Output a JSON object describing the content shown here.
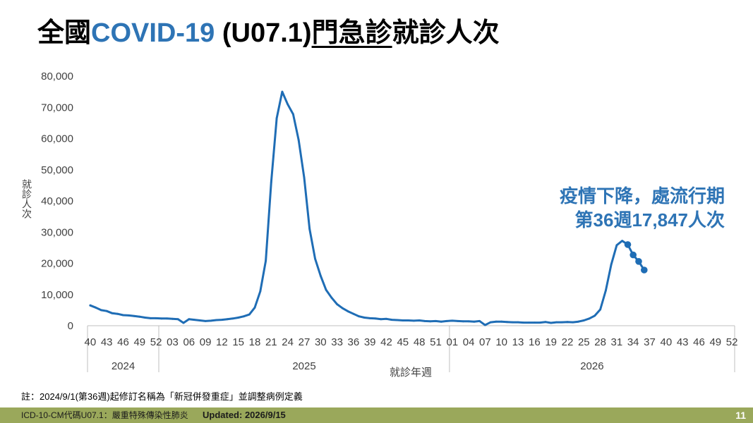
{
  "colors": {
    "accent": "#2e74b5",
    "line": "#1f6db5",
    "footer_bar": "#9aa85b",
    "page_number": "#ffffff"
  },
  "chart_data": {
    "type": "line",
    "title": [
      "全國",
      "COVID-19",
      " (U07.1)",
      "門急診",
      "就診人次"
    ],
    "xlabel": "就診年週",
    "ylabel": "就診人次",
    "ylim": [
      0,
      80000
    ],
    "grid": false,
    "y_ticks": [
      {
        "value": 80000,
        "label": "80,000"
      },
      {
        "value": 70000,
        "label": "70,000"
      },
      {
        "value": 60000,
        "label": "60,000"
      },
      {
        "value": 50000,
        "label": "50,000"
      },
      {
        "value": 40000,
        "label": "40,000"
      },
      {
        "value": 30000,
        "label": "30,000"
      },
      {
        "value": 20000,
        "label": "20,000"
      },
      {
        "value": 10000,
        "label": "10,000"
      },
      {
        "value": 0,
        "label": "0"
      }
    ],
    "x_tick_labels": [
      "40",
      "43",
      "46",
      "49",
      "52",
      "03",
      "06",
      "09",
      "12",
      "15",
      "18",
      "21",
      "24",
      "27",
      "30",
      "33",
      "36",
      "39",
      "42",
      "45",
      "48",
      "51",
      "01",
      "04",
      "07",
      "10",
      "13",
      "16",
      "19",
      "22",
      "25",
      "28",
      "31",
      "34",
      "37",
      "40",
      "43",
      "46",
      "49",
      "52"
    ],
    "years": [
      {
        "label": "2024",
        "week_from": 40,
        "week_to": 52,
        "values": [
          6500,
          5800,
          5000,
          4700,
          4000,
          3800,
          3400,
          3300,
          3100,
          2900,
          2600,
          2400,
          2400
        ]
      },
      {
        "label": "2025",
        "week_from": 1,
        "week_to": 53,
        "values": [
          2300,
          2300,
          2200,
          2100,
          900,
          2100,
          1900,
          1700,
          1500,
          1600,
          1800,
          1900,
          2100,
          2300,
          2600,
          3000,
          3600,
          5800,
          11000,
          20800,
          46000,
          66500,
          75000,
          71000,
          67800,
          59500,
          47500,
          31000,
          21500,
          16000,
          11500,
          9000,
          6900,
          5600,
          4600,
          3800,
          3000,
          2600,
          2400,
          2300,
          2100,
          2200,
          1900,
          1800,
          1700,
          1700,
          1600,
          1700,
          1500,
          1400,
          1500,
          1300,
          1500
        ]
      },
      {
        "label": "2026",
        "week_from": 1,
        "week_to": 52,
        "values": [
          1600,
          1500,
          1400,
          1400,
          1300,
          1500,
          200,
          1100,
          1300,
          1300,
          1200,
          1100,
          1100,
          1000,
          1000,
          1000,
          1000,
          1200,
          900,
          1100,
          1100,
          1200,
          1100,
          1300,
          1700,
          2300,
          3200,
          5200,
          11300,
          19600,
          25800,
          27200,
          26000,
          22700,
          20600,
          17847
        ],
        "marker_weeks": [
          33,
          34,
          35,
          36
        ]
      }
    ],
    "annotation": [
      "疫情下降，處流行期",
      "第36週17,847人次"
    ]
  },
  "footnote": "註：2024/9/1(第36週)起修訂名稱為「新冠併發重症」並調整病例定義",
  "footer": {
    "code": "ICD-10-CM代碼U07.1：嚴重特殊傳染性肺炎",
    "updated": "Updated: 2026/9/15",
    "page": "11"
  }
}
